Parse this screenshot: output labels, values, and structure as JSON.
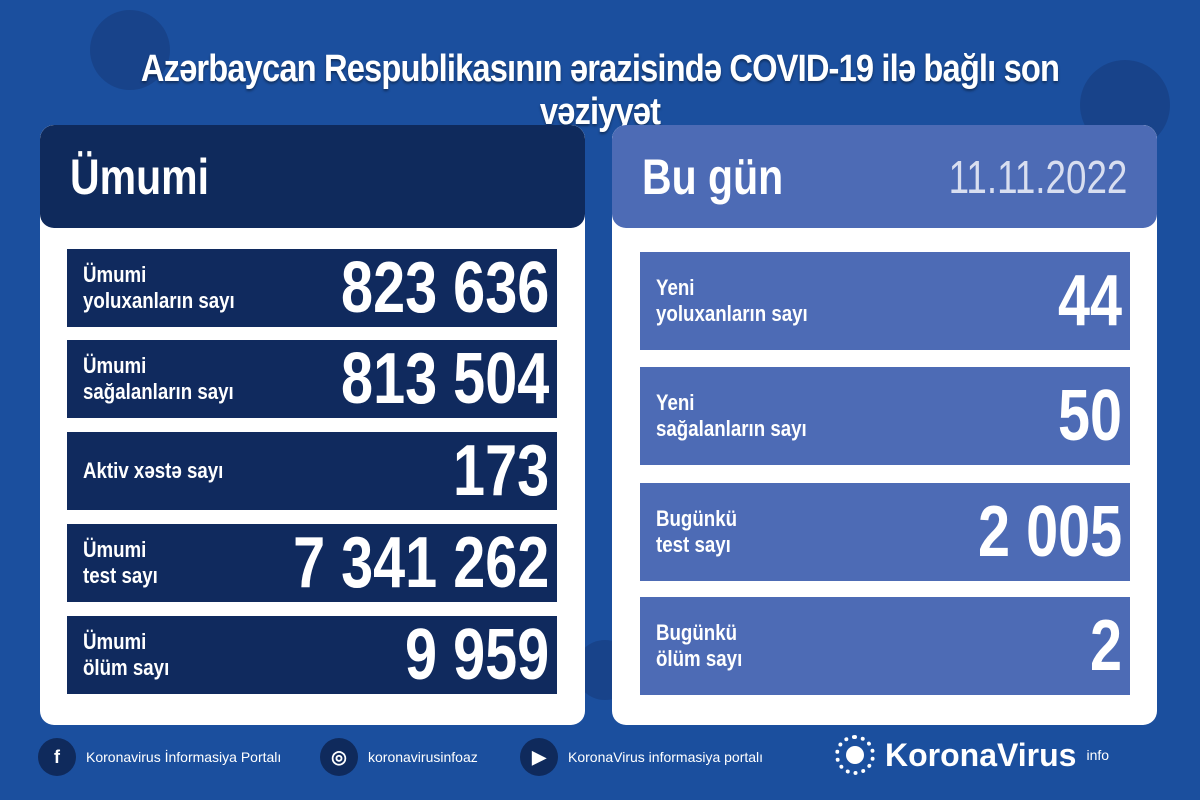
{
  "title": "Azərbaycan Respublikasının ərazisində COVID-19 ilə bağlı son vəziyyət",
  "total": {
    "heading": "Ümumi",
    "rows": [
      {
        "label": "Ümumi\nyoluxanların sayı",
        "value": "823 636"
      },
      {
        "label": "Ümumi\nsağalanların sayı",
        "value": "813 504"
      },
      {
        "label": "Aktiv xəstə sayı",
        "value": "173"
      },
      {
        "label": "Ümumi\ntest sayı",
        "value": "7 341 262"
      },
      {
        "label": "Ümumi\nölüm sayı",
        "value": "9 959"
      }
    ]
  },
  "today": {
    "heading": "Bu gün",
    "date": "11.11.2022",
    "rows": [
      {
        "label": "Yeni\nyoluxanların sayı",
        "value": "44"
      },
      {
        "label": "Yeni\nsağalanların sayı",
        "value": "50"
      },
      {
        "label": "Bugünkü\ntest sayı",
        "value": "2 005"
      },
      {
        "label": "Bugünkü\nölüm sayı",
        "value": "2"
      }
    ]
  },
  "footer": {
    "facebook": "Koronavirus İnformasiya Portalı",
    "instagram": "koronavirusinfoaz",
    "youtube": "KoronaVirus informasiya portalı",
    "brand": "KoronaVirus",
    "brand_sup": "info"
  },
  "colors": {
    "background": "#1b4f9e",
    "dark": "#0f2a5c",
    "accent": "#4d6bb5"
  }
}
